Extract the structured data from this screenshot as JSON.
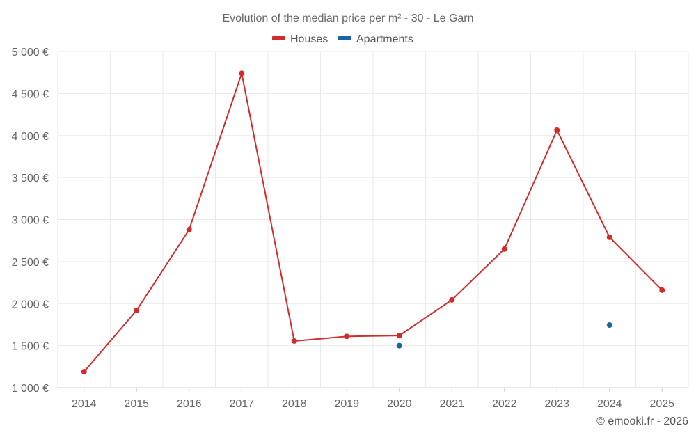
{
  "chart_data": {
    "type": "line",
    "title": "Evolution of the median price per m² - 30 - Le Garn",
    "categories": [
      "2014",
      "2015",
      "2016",
      "2017",
      "2018",
      "2019",
      "2020",
      "2021",
      "2022",
      "2023",
      "2024",
      "2025"
    ],
    "series": [
      {
        "name": "Houses",
        "color": "#d42a2a",
        "values": [
          1190,
          1920,
          2880,
          4740,
          1555,
          1610,
          1620,
          2045,
          2650,
          4065,
          2790,
          2160
        ]
      },
      {
        "name": "Apartments",
        "color": "#1565a8",
        "values": [
          null,
          null,
          null,
          null,
          null,
          null,
          1500,
          null,
          null,
          null,
          1745,
          null
        ]
      }
    ],
    "yticks": [
      "5 000 €",
      "4 500 €",
      "4 000 €",
      "3 500 €",
      "3 000 €",
      "2 500 €",
      "2 000 €",
      "1 500 €",
      "1 000 €"
    ],
    "ytick_values": [
      5000,
      4500,
      4000,
      3500,
      3000,
      2500,
      2000,
      1500,
      1000
    ],
    "ylim": [
      1000,
      5000
    ],
    "xlabel": "",
    "ylabel": "",
    "grid": true,
    "legend_position": "top-center"
  },
  "credit": "© emooki.fr - 2026"
}
